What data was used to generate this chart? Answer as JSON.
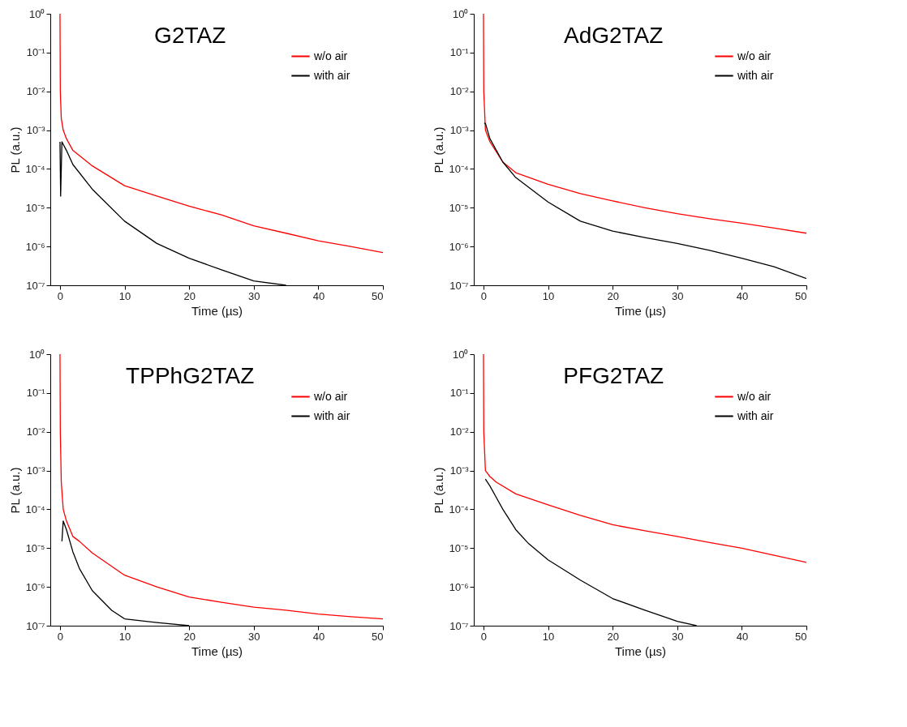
{
  "chart_data": [
    {
      "type": "line",
      "title": "G2TAZ",
      "xlabel": "Time (µs)",
      "ylabel": "PL (a.u.)",
      "log": true,
      "legend": "top right",
      "xlim": [
        -1.5,
        50
      ],
      "xticks": [
        0,
        10,
        20,
        30,
        40,
        50
      ],
      "ylim": [
        1e-07,
        1
      ],
      "yticks": [
        {
          "value": 1,
          "label": "10⁰"
        },
        {
          "value": 0.1,
          "label": "10⁻¹"
        },
        {
          "value": 0.01,
          "label": "10⁻²"
        },
        {
          "value": 0.001,
          "label": "10⁻³"
        },
        {
          "value": 0.0001,
          "label": "10⁻⁴"
        },
        {
          "value": 1e-05,
          "label": "10⁻⁵"
        },
        {
          "value": 1e-06,
          "label": "10⁻⁶"
        },
        {
          "value": 1e-07,
          "label": "10⁻⁷"
        }
      ],
      "series": [
        {
          "name": "w/o air",
          "color": "#ff0000",
          "x": [
            0,
            0.05,
            0.2,
            0.5,
            1,
            2,
            5,
            10,
            15,
            20,
            25,
            30,
            35,
            40,
            45,
            50
          ],
          "values": [
            1,
            0.01,
            0.002,
            0.001,
            0.0006,
            0.0003,
            0.00012,
            3.7e-05,
            2e-05,
            1.1e-05,
            6.5e-06,
            3.4e-06,
            2.2e-06,
            1.4e-06,
            1e-06,
            7e-07
          ]
        },
        {
          "name": "with air",
          "color": "#000000",
          "x": [
            0,
            0.1,
            0.3,
            1,
            2,
            5,
            10,
            15,
            20,
            25,
            30,
            35
          ],
          "values": [
            0.0005,
            2e-05,
            0.0005,
            0.0003,
            0.00013,
            3e-05,
            4.5e-06,
            1.2e-06,
            5e-07,
            2.5e-07,
            1.3e-07,
            1e-07
          ]
        }
      ]
    },
    {
      "type": "line",
      "title": "AdG2TAZ",
      "xlabel": "Time (µs)",
      "ylabel": "PL (a.u.)",
      "log": true,
      "legend": "top right",
      "xlim": [
        -1.5,
        50
      ],
      "xticks": [
        0,
        10,
        20,
        30,
        40,
        50
      ],
      "ylim": [
        1e-07,
        1
      ],
      "yticks": [
        {
          "value": 1,
          "label": "10⁰"
        },
        {
          "value": 0.1,
          "label": "10⁻¹"
        },
        {
          "value": 0.01,
          "label": "10⁻²"
        },
        {
          "value": 0.001,
          "label": "10⁻³"
        },
        {
          "value": 0.0001,
          "label": "10⁻⁴"
        },
        {
          "value": 1e-05,
          "label": "10⁻⁵"
        },
        {
          "value": 1e-06,
          "label": "10⁻⁶"
        },
        {
          "value": 1e-07,
          "label": "10⁻⁷"
        }
      ],
      "series": [
        {
          "name": "w/o air",
          "color": "#ff0000",
          "x": [
            0,
            0.05,
            0.3,
            1,
            3,
            5,
            10,
            15,
            20,
            25,
            30,
            35,
            40,
            45,
            50
          ],
          "values": [
            1,
            0.01,
            0.001,
            0.0005,
            0.00015,
            8e-05,
            4e-05,
            2.3e-05,
            1.5e-05,
            1e-05,
            7e-06,
            5.2e-06,
            4e-06,
            3e-06,
            2.2e-06
          ]
        },
        {
          "name": "with air",
          "color": "#000000",
          "x": [
            0.1,
            0.3,
            1,
            3,
            5,
            10,
            15,
            20,
            25,
            30,
            35,
            40,
            45,
            50
          ],
          "values": [
            0.0015,
            0.0015,
            0.0006,
            0.00015,
            6e-05,
            1.4e-05,
            4.5e-06,
            2.5e-06,
            1.7e-06,
            1.2e-06,
            8e-07,
            5e-07,
            3e-07,
            1.5e-07
          ]
        }
      ]
    },
    {
      "type": "line",
      "title": "TPPhG2TAZ",
      "xlabel": "Time (µs)",
      "ylabel": "PL (a.u.)",
      "log": true,
      "legend": "top right",
      "xlim": [
        -1.5,
        50
      ],
      "xticks": [
        0,
        10,
        20,
        30,
        40,
        50
      ],
      "ylim": [
        1e-07,
        1
      ],
      "yticks": [
        {
          "value": 1,
          "label": "10⁰"
        },
        {
          "value": 0.1,
          "label": "10⁻¹"
        },
        {
          "value": 0.01,
          "label": "10⁻²"
        },
        {
          "value": 0.001,
          "label": "10⁻³"
        },
        {
          "value": 0.0001,
          "label": "10⁻⁴"
        },
        {
          "value": 1e-05,
          "label": "10⁻⁵"
        },
        {
          "value": 1e-06,
          "label": "10⁻⁶"
        },
        {
          "value": 1e-07,
          "label": "10⁻⁷"
        }
      ],
      "series": [
        {
          "name": "w/o air",
          "color": "#ff0000",
          "x": [
            0,
            0.05,
            0.2,
            0.5,
            1,
            2,
            3,
            5,
            10,
            15,
            20,
            25,
            30,
            35,
            40,
            45,
            50
          ],
          "values": [
            1,
            0.01,
            0.0005,
            0.0001,
            5e-05,
            2e-05,
            1.5e-05,
            7.5e-06,
            2e-06,
            1e-06,
            5.5e-07,
            4e-07,
            3e-07,
            2.5e-07,
            2e-07,
            1.7e-07,
            1.5e-07
          ]
        },
        {
          "name": "with air",
          "color": "#000000",
          "x": [
            0.3,
            0.5,
            1,
            2,
            3,
            5,
            8,
            10,
            15,
            20
          ],
          "values": [
            1.5e-05,
            5e-05,
            3e-05,
            8e-06,
            3e-06,
            8e-07,
            2.5e-07,
            1.5e-07,
            1.2e-07,
            1e-07
          ]
        }
      ]
    },
    {
      "type": "line",
      "title": "PFG2TAZ",
      "xlabel": "Time (µs)",
      "ylabel": "PL (a.u.)",
      "log": true,
      "legend": "top right",
      "xlim": [
        -1.5,
        50
      ],
      "xticks": [
        0,
        10,
        20,
        30,
        40,
        50
      ],
      "ylim": [
        1e-07,
        1
      ],
      "yticks": [
        {
          "value": 1,
          "label": "10⁰"
        },
        {
          "value": 0.1,
          "label": "10⁻¹"
        },
        {
          "value": 0.01,
          "label": "10⁻²"
        },
        {
          "value": 0.001,
          "label": "10⁻³"
        },
        {
          "value": 0.0001,
          "label": "10⁻⁴"
        },
        {
          "value": 1e-05,
          "label": "10⁻⁵"
        },
        {
          "value": 1e-06,
          "label": "10⁻⁶"
        },
        {
          "value": 1e-07,
          "label": "10⁻⁷"
        }
      ],
      "series": [
        {
          "name": "w/o air",
          "color": "#ff0000",
          "x": [
            0,
            0.05,
            0.3,
            1,
            2,
            5,
            10,
            15,
            20,
            25,
            30,
            35,
            40,
            45,
            50
          ],
          "values": [
            1,
            0.01,
            0.001,
            0.0007,
            0.0005,
            0.00025,
            0.00013,
            7e-05,
            4e-05,
            2.8e-05,
            2e-05,
            1.4e-05,
            1e-05,
            6.5e-06,
            4.3e-06
          ]
        },
        {
          "name": "with air",
          "color": "#000000",
          "x": [
            0.3,
            1,
            2,
            3,
            5,
            7,
            10,
            15,
            20,
            25,
            30,
            33
          ],
          "values": [
            0.0006,
            0.0004,
            0.0002,
            0.0001,
            3e-05,
            1.3e-05,
            5e-06,
            1.5e-06,
            5e-07,
            2.5e-07,
            1.3e-07,
            1e-07
          ]
        }
      ]
    }
  ]
}
